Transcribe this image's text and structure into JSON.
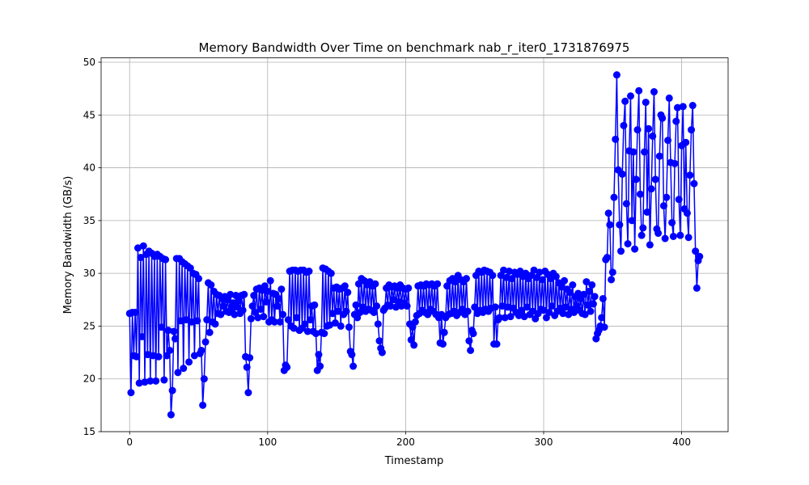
{
  "chart_data": {
    "type": "line",
    "title": "Memory Bandwidth Over Time on benchmark nab_r_iter0_1731876975",
    "xlabel": "Timestamp",
    "ylabel": "Memory Bandwidth (GB/s)",
    "xlim": [
      -20.65,
      433.65
    ],
    "ylim": [
      15.0,
      50.42
    ],
    "xticks": [
      0,
      100,
      200,
      300,
      400
    ],
    "yticks": [
      15,
      20,
      25,
      30,
      35,
      40,
      45,
      50
    ],
    "grid": true,
    "marker": "o",
    "x": [
      0,
      1,
      2,
      3,
      4,
      5,
      6,
      7,
      8,
      9,
      10,
      11,
      12,
      13,
      14,
      15,
      16,
      17,
      18,
      19,
      20,
      21,
      22,
      23,
      24,
      25,
      26,
      27,
      28,
      29,
      30,
      31,
      32,
      33,
      34,
      35,
      36,
      37,
      38,
      39,
      40,
      41,
      42,
      43,
      44,
      45,
      46,
      47,
      48,
      49,
      50,
      51,
      52,
      53,
      54,
      55,
      56,
      57,
      58,
      59,
      60,
      61,
      62,
      63,
      64,
      65,
      66,
      67,
      68,
      69,
      70,
      71,
      72,
      73,
      74,
      75,
      76,
      77,
      78,
      79,
      80,
      81,
      82,
      83,
      84,
      85,
      86,
      87,
      88,
      89,
      90,
      91,
      92,
      93,
      94,
      95,
      96,
      97,
      98,
      99,
      100,
      101,
      102,
      103,
      104,
      105,
      106,
      107,
      108,
      109,
      110,
      111,
      112,
      113,
      114,
      115,
      116,
      117,
      118,
      119,
      120,
      121,
      122,
      123,
      124,
      125,
      126,
      127,
      128,
      129,
      130,
      131,
      132,
      133,
      134,
      135,
      136,
      137,
      138,
      139,
      140,
      141,
      142,
      143,
      144,
      145,
      146,
      147,
      148,
      149,
      150,
      151,
      152,
      153,
      154,
      155,
      156,
      157,
      158,
      159,
      160,
      161,
      162,
      163,
      164,
      165,
      166,
      167,
      168,
      169,
      170,
      171,
      172,
      173,
      174,
      175,
      176,
      177,
      178,
      179,
      180,
      181,
      182,
      183,
      184,
      185,
      186,
      187,
      188,
      189,
      190,
      191,
      192,
      193,
      194,
      195,
      196,
      197,
      198,
      199,
      200,
      201,
      202,
      203,
      204,
      205,
      206,
      207,
      208,
      209,
      210,
      211,
      212,
      213,
      214,
      215,
      216,
      217,
      218,
      219,
      220,
      221,
      222,
      223,
      224,
      225,
      226,
      227,
      228,
      229,
      230,
      231,
      232,
      233,
      234,
      235,
      236,
      237,
      238,
      239,
      240,
      241,
      242,
      243,
      244,
      245,
      246,
      247,
      248,
      249,
      250,
      251,
      252,
      253,
      254,
      255,
      256,
      257,
      258,
      259,
      260,
      261,
      262,
      263,
      264,
      265,
      266,
      267,
      268,
      269,
      270,
      271,
      272,
      273,
      274,
      275,
      276,
      277,
      278,
      279,
      280,
      281,
      282,
      283,
      284,
      285,
      286,
      287,
      288,
      289,
      290,
      291,
      292,
      293,
      294,
      295,
      296,
      297,
      298,
      299,
      300,
      301,
      302,
      303,
      304,
      305,
      306,
      307,
      308,
      309,
      310,
      311,
      312,
      313,
      314,
      315,
      316,
      317,
      318,
      319,
      320,
      321,
      322,
      323,
      324,
      325,
      326,
      327,
      328,
      329,
      330,
      331,
      332,
      333,
      334,
      335,
      336,
      337,
      338,
      339,
      340,
      341,
      342,
      343,
      344,
      345,
      346,
      347,
      348,
      349,
      350,
      351,
      352,
      353,
      354,
      355,
      356,
      357,
      358,
      359,
      360,
      361,
      362,
      363,
      364,
      365,
      366,
      367,
      368,
      369,
      370,
      371,
      372,
      373,
      374,
      375,
      376,
      377,
      378,
      379,
      380,
      381,
      382,
      383,
      384,
      385,
      386,
      387,
      388,
      389,
      390,
      391,
      392,
      393,
      394,
      395,
      396,
      397,
      398,
      399,
      400,
      401,
      402,
      403,
      404,
      405,
      406,
      407,
      408,
      409,
      410,
      411,
      412,
      413
    ],
    "series": [
      {
        "name": "Memory Bandwidth",
        "color": "#0000ff",
        "values": [
          26.2,
          18.7,
          26.3,
          22.2,
          26.3,
          22.1,
          32.4,
          19.6,
          31.5,
          24.0,
          32.6,
          19.7,
          31.8,
          22.3,
          32.1,
          19.8,
          31.9,
          22.2,
          31.6,
          19.8,
          31.8,
          22.1,
          31.6,
          24.9,
          31.4,
          19.9,
          31.3,
          22.2,
          24.6,
          22.7,
          16.6,
          18.9,
          24.5,
          23.8,
          31.4,
          20.6,
          31.4,
          25.5,
          31.1,
          21.0,
          30.9,
          25.6,
          30.7,
          21.6,
          30.5,
          25.4,
          30.0,
          22.2,
          29.9,
          25.5,
          29.5,
          22.4,
          22.7,
          17.5,
          20.0,
          23.5,
          25.6,
          29.1,
          24.4,
          28.9,
          25.4,
          28.3,
          25.2,
          28.0,
          26.2,
          27.9,
          26.1,
          27.6,
          26.9,
          27.8,
          26.4,
          27.5,
          26.3,
          28.0,
          26.7,
          27.2,
          26.1,
          27.9,
          26.8,
          27.4,
          26.2,
          27.9,
          26.5,
          28.0,
          22.1,
          21.1,
          18.7,
          22.0,
          25.7,
          26.9,
          27.9,
          26.3,
          28.5,
          25.8,
          28.6,
          26.6,
          28.4,
          25.9,
          28.8,
          27.3,
          28.3,
          25.4,
          29.3,
          25.6,
          28.1,
          25.4,
          28.0,
          26.9,
          27.6,
          25.4,
          28.5,
          26.1,
          20.8,
          21.3,
          21.1,
          25.6,
          30.2,
          25.0,
          30.3,
          24.8,
          30.3,
          25.8,
          30.2,
          24.6,
          30.3,
          24.8,
          30.3,
          25.2,
          30.1,
          24.5,
          30.2,
          25.6,
          26.9,
          24.5,
          27.0,
          24.3,
          20.8,
          22.3,
          21.2,
          24.4,
          30.5,
          24.3,
          30.4,
          25.0,
          30.2,
          25.1,
          30.0,
          26.2,
          28.6,
          25.3,
          28.7,
          26.4,
          28.5,
          25.0,
          28.6,
          26.1,
          28.8,
          26.4,
          28.2,
          24.9,
          22.6,
          22.3,
          21.2,
          26.1,
          27.0,
          25.8,
          29.0,
          26.3,
          29.5,
          26.8,
          29.3,
          26.4,
          28.9,
          26.6,
          29.2,
          26.5,
          28.8,
          26.3,
          29.0,
          26.9,
          25.2,
          23.6,
          22.9,
          22.5,
          26.5,
          26.7,
          28.6,
          27.0,
          28.9,
          26.9,
          28.7,
          27.5,
          28.8,
          26.8,
          28.6,
          27.3,
          28.9,
          26.9,
          28.6,
          27.2,
          28.5,
          26.9,
          28.6,
          25.2,
          23.7,
          24.9,
          23.2,
          25.4,
          26.0,
          28.8,
          26.2,
          28.9,
          26.5,
          28.8,
          26.3,
          29.0,
          26.1,
          28.9,
          26.6,
          29.0,
          26.4,
          28.8,
          26.1,
          29.0,
          25.8,
          23.4,
          26.1,
          23.3,
          24.4,
          25.8,
          28.8,
          26.1,
          29.3,
          26.2,
          29.5,
          26.4,
          29.2,
          26.0,
          29.8,
          26.3,
          29.4,
          26.6,
          29.2,
          26.1,
          29.5,
          26.4,
          23.6,
          22.7,
          24.6,
          24.3,
          26.8,
          29.8,
          26.2,
          30.2,
          26.5,
          30.1,
          26.3,
          30.3,
          26.6,
          30.2,
          26.4,
          30.1,
          26.7,
          29.8,
          23.3,
          26.8,
          23.3,
          25.6,
          25.8,
          29.8,
          26.9,
          30.3,
          25.8,
          29.6,
          26.8,
          30.2,
          25.9,
          29.5,
          26.7,
          30.1,
          26.3,
          29.9,
          26.0,
          30.2,
          26.5,
          29.7,
          25.9,
          30.0,
          26.8,
          29.5,
          26.1,
          29.8,
          26.4,
          30.3,
          25.7,
          29.6,
          26.2,
          30.1,
          26.6,
          29.4,
          26.5,
          30.2,
          25.8,
          29.9,
          26.3,
          29.5,
          26.9,
          30.0,
          26.0,
          29.7,
          26.4,
          29.1,
          26.7,
          28.7,
          26.2,
          29.3,
          26.8,
          28.5,
          26.1,
          28.2,
          26.6,
          28.9,
          26.3,
          27.8,
          26.9,
          28.1,
          26.5,
          27.6,
          26.2,
          28.0,
          26.1,
          29.2,
          27.0,
          28.3,
          26.4,
          28.9,
          27.1,
          27.8,
          23.8,
          24.3,
          24.6,
          25.0,
          25.8,
          27.6,
          24.9,
          31.3,
          31.5,
          35.7,
          34.6,
          29.4,
          30.1,
          37.2,
          42.7,
          48.8,
          39.8,
          34.6,
          32.1,
          39.4,
          44.0,
          46.3,
          36.6,
          32.8,
          41.6,
          46.8,
          35.0,
          41.5,
          32.3,
          38.9,
          43.6,
          47.3,
          37.5,
          33.6,
          34.3,
          41.5,
          46.2,
          35.8,
          43.7,
          32.7,
          38.0,
          43.0,
          47.2,
          38.9,
          34.2,
          33.8,
          41.1,
          45.0,
          44.7,
          36.4,
          33.3,
          37.2,
          42.6,
          46.6,
          40.5,
          34.8,
          33.5,
          40.4,
          44.4,
          45.7,
          37.0,
          33.6,
          42.1,
          45.8,
          36.1,
          42.4,
          35.7,
          33.4,
          39.3,
          43.6,
          45.9,
          38.5,
          32.1,
          28.6,
          31.2,
          31.6
        ]
      }
    ]
  }
}
